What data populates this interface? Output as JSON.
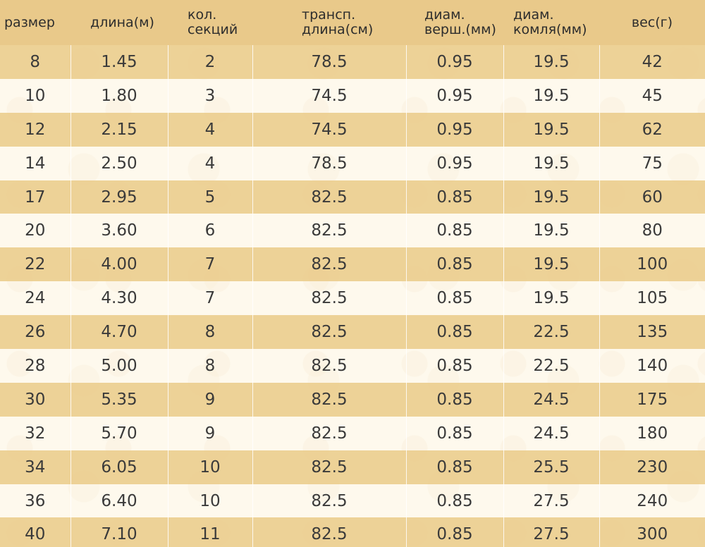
{
  "headers": [
    "размер",
    "длина(м)",
    "кол.\nсекций",
    "трансп.\nдлина(см)",
    "диам.\nверш.(мм)",
    "диам.\nкомля(мм)",
    "вес(г)"
  ],
  "rows": [
    [
      "8",
      "1.45",
      "2",
      "78.5",
      "0.95",
      "19.5",
      "42"
    ],
    [
      "10",
      "1.80",
      "3",
      "74.5",
      "0.95",
      "19.5",
      "45"
    ],
    [
      "12",
      "2.15",
      "4",
      "74.5",
      "0.95",
      "19.5",
      "62"
    ],
    [
      "14",
      "2.50",
      "4",
      "78.5",
      "0.95",
      "19.5",
      "75"
    ],
    [
      "17",
      "2.95",
      "5",
      "82.5",
      "0.85",
      "19.5",
      "60"
    ],
    [
      "20",
      "3.60",
      "6",
      "82.5",
      "0.85",
      "19.5",
      "80"
    ],
    [
      "22",
      "4.00",
      "7",
      "82.5",
      "0.85",
      "19.5",
      "100"
    ],
    [
      "24",
      "4.30",
      "7",
      "82.5",
      "0.85",
      "19.5",
      "105"
    ],
    [
      "26",
      "4.70",
      "8",
      "82.5",
      "0.85",
      "22.5",
      "135"
    ],
    [
      "28",
      "5.00",
      "8",
      "82.5",
      "0.85",
      "22.5",
      "140"
    ],
    [
      "30",
      "5.35",
      "9",
      "82.5",
      "0.85",
      "24.5",
      "175"
    ],
    [
      "32",
      "5.70",
      "9",
      "82.5",
      "0.85",
      "24.5",
      "180"
    ],
    [
      "34",
      "6.05",
      "10",
      "82.5",
      "0.85",
      "25.5",
      "230"
    ],
    [
      "36",
      "6.40",
      "10",
      "82.5",
      "0.85",
      "27.5",
      "240"
    ],
    [
      "40",
      "7.10",
      "11",
      "82.5",
      "0.85",
      "27.5",
      "300"
    ]
  ],
  "colors": {
    "header_bg": "#e9c98a",
    "band_bg": "#ecce90",
    "text": "#3a3a3a"
  }
}
